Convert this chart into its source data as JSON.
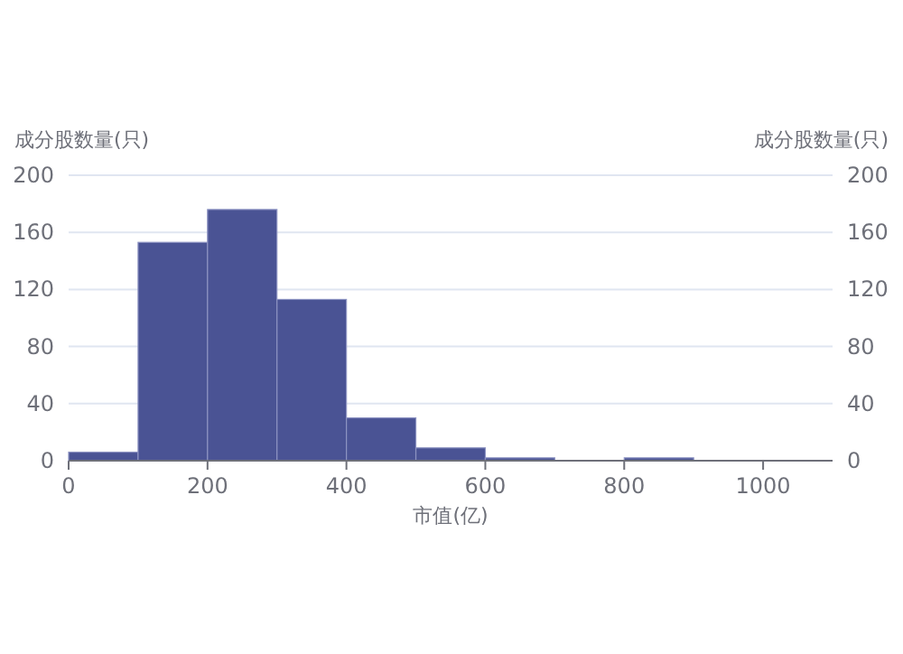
{
  "chart_data": {
    "type": "histogram",
    "xlabel": "市值(亿)",
    "ylabel": "成分股数量(只)",
    "y2label": "成分股数量(只)",
    "bins": [
      0,
      100,
      200,
      300,
      400,
      500,
      600,
      700,
      800,
      900,
      1000
    ],
    "values": [
      6,
      153,
      176,
      113,
      30,
      9,
      2,
      0,
      2,
      0
    ],
    "color": "#4a5394",
    "xlim": [
      0,
      1100
    ],
    "xticks": [
      0,
      200,
      400,
      600,
      800,
      1000
    ],
    "ylim": [
      0,
      200
    ],
    "yticks": [
      0,
      40,
      80,
      120,
      160,
      200
    ],
    "y2lim": [
      0,
      200
    ],
    "y2ticks": [
      0,
      40,
      80,
      120,
      160,
      200
    ],
    "grid": "y"
  }
}
